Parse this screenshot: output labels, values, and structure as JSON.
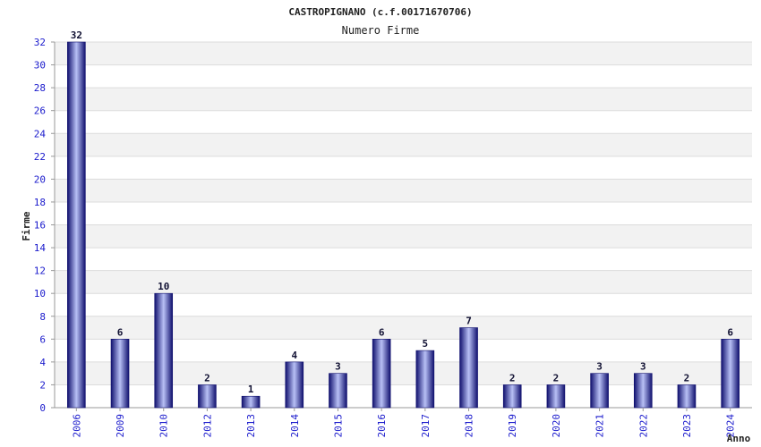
{
  "colors": {
    "bar_dark": "#10106e",
    "bar_light": "#b8c0f5",
    "band_gray": "#f2f2f2",
    "grid": "#dcdcdc",
    "axis_text": "#1a1acc"
  },
  "chart_data": {
    "type": "bar",
    "title": "CASTROPIGNANO (c.f.00171670706)",
    "subtitle": "Numero Firme",
    "xlabel": "Anno",
    "ylabel": "Firme",
    "categories": [
      "2006",
      "2009",
      "2010",
      "2012",
      "2013",
      "2014",
      "2015",
      "2016",
      "2017",
      "2018",
      "2019",
      "2020",
      "2021",
      "2022",
      "2023",
      "2024"
    ],
    "values": [
      32,
      6,
      10,
      2,
      1,
      4,
      3,
      6,
      5,
      7,
      2,
      2,
      3,
      3,
      2,
      6
    ],
    "ylim": [
      0,
      32
    ],
    "yticks": [
      "0",
      "2",
      "4",
      "6",
      "8",
      "10",
      "12",
      "14",
      "16",
      "18",
      "20",
      "22",
      "24",
      "26",
      "28",
      "30",
      "32"
    ],
    "grid": true,
    "data_labels": true
  }
}
